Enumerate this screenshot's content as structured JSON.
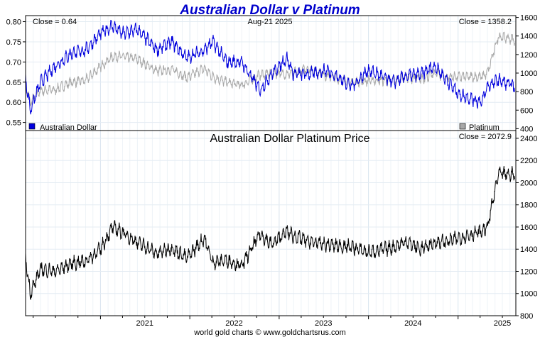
{
  "title": "Australian Dollar v Platinum",
  "footer": "world gold charts © www.goldchartsrus.com",
  "chart_data": [
    {
      "type": "line",
      "panel": "top",
      "date_label": "Aug-21  2025",
      "close_left": "Close = 0.64",
      "close_right": "Close = 1358.2",
      "left_axis": {
        "ticks": [
          "0.80",
          "0.75",
          "0.70",
          "0.65",
          "0.60",
          "0.55"
        ],
        "range": [
          0.53,
          0.815
        ]
      },
      "right_axis": {
        "ticks": [
          "1600",
          "1400",
          "1200",
          "1000",
          "800",
          "600",
          "400"
        ],
        "range": [
          380,
          1620
        ]
      },
      "series": [
        {
          "name": "Australian Dollar",
          "axis": "left",
          "color": "#0000dd",
          "x": [
            "2020-03-01",
            "2020-03-20",
            "2020-05-01",
            "2020-07-01",
            "2020-09-01",
            "2020-11-01",
            "2021-01-01",
            "2021-02-20",
            "2021-04-01",
            "2021-06-01",
            "2021-08-20",
            "2021-10-20",
            "2021-12-20",
            "2022-03-01",
            "2022-04-05",
            "2022-06-01",
            "2022-08-01",
            "2022-10-15",
            "2022-12-01",
            "2023-02-01",
            "2023-03-01",
            "2023-05-01",
            "2023-07-15",
            "2023-10-25",
            "2024-01-01",
            "2024-04-15",
            "2024-06-01",
            "2024-08-01",
            "2024-09-30",
            "2024-11-15",
            "2025-01-05",
            "2025-04-08",
            "2025-05-01",
            "2025-06-15",
            "2025-08-21"
          ],
          "y": [
            0.66,
            0.58,
            0.65,
            0.69,
            0.72,
            0.73,
            0.77,
            0.79,
            0.77,
            0.78,
            0.73,
            0.75,
            0.71,
            0.73,
            0.75,
            0.7,
            0.7,
            0.63,
            0.67,
            0.71,
            0.67,
            0.67,
            0.68,
            0.64,
            0.68,
            0.65,
            0.665,
            0.67,
            0.69,
            0.655,
            0.62,
            0.6,
            0.64,
            0.655,
            0.64
          ]
        },
        {
          "name": "Platinum",
          "axis": "right",
          "color": "#a8a8a8",
          "x": [
            "2020-03-01",
            "2020-03-20",
            "2020-05-01",
            "2020-07-01",
            "2020-09-01",
            "2020-11-01",
            "2021-01-01",
            "2021-02-20",
            "2021-04-01",
            "2021-06-01",
            "2021-08-20",
            "2021-10-20",
            "2021-12-20",
            "2022-03-01",
            "2022-04-05",
            "2022-06-01",
            "2022-08-01",
            "2022-10-15",
            "2022-12-01",
            "2023-02-01",
            "2023-03-01",
            "2023-05-01",
            "2023-07-15",
            "2023-10-25",
            "2024-01-01",
            "2024-04-15",
            "2024-06-01",
            "2024-08-01",
            "2024-09-30",
            "2024-11-15",
            "2025-01-05",
            "2025-04-08",
            "2025-05-01",
            "2025-06-15",
            "2025-08-21"
          ],
          "y": [
            880,
            680,
            810,
            820,
            900,
            920,
            1070,
            1180,
            1180,
            1150,
            1020,
            1040,
            950,
            1050,
            960,
            900,
            870,
            980,
            1000,
            990,
            1000,
            1050,
            970,
            900,
            920,
            920,
            960,
            930,
            1000,
            960,
            960,
            960,
            1000,
            1400,
            1358
          ]
        }
      ],
      "legend": [
        {
          "label": "Australian Dollar",
          "color": "#0000dd",
          "position": "bottom-left"
        },
        {
          "label": "Platinum",
          "color": "#a8a8a8",
          "position": "bottom-right"
        }
      ],
      "x_range": [
        "2020-03-01",
        "2025-08-25"
      ]
    },
    {
      "type": "line",
      "panel": "bottom",
      "title": "Australian Dollar Platinum Price",
      "close_right": "Close = 2072.9",
      "right_axis": {
        "ticks": [
          "2400",
          "2200",
          "2000",
          "1800",
          "1600",
          "1400",
          "1200",
          "1000",
          "800"
        ],
        "range": [
          800,
          2470
        ]
      },
      "series": [
        {
          "name": "",
          "color": "#000000",
          "x": [
            "2020-03-01",
            "2020-03-20",
            "2020-05-01",
            "2020-07-01",
            "2020-09-01",
            "2020-11-01",
            "2021-01-01",
            "2021-02-20",
            "2021-04-01",
            "2021-06-01",
            "2021-08-20",
            "2021-10-20",
            "2021-12-20",
            "2022-03-01",
            "2022-04-05",
            "2022-06-01",
            "2022-08-01",
            "2022-10-15",
            "2022-12-01",
            "2023-02-01",
            "2023-03-01",
            "2023-05-01",
            "2023-07-15",
            "2023-10-25",
            "2024-01-01",
            "2024-04-15",
            "2024-06-01",
            "2024-08-01",
            "2024-09-30",
            "2024-11-15",
            "2025-01-05",
            "2025-04-08",
            "2025-05-01",
            "2025-06-15",
            "2025-08-21"
          ],
          "y": [
            1320,
            1000,
            1220,
            1200,
            1270,
            1290,
            1400,
            1600,
            1550,
            1460,
            1360,
            1410,
            1320,
            1500,
            1280,
            1300,
            1250,
            1540,
            1440,
            1560,
            1520,
            1470,
            1440,
            1420,
            1370,
            1420,
            1470,
            1400,
            1460,
            1470,
            1500,
            1560,
            1600,
            2080,
            2073
          ]
        }
      ],
      "x_range": [
        "2020-03-01",
        "2025-08-25"
      ]
    }
  ],
  "x_axis": {
    "tick_labels": [
      "2021",
      "2022",
      "2023",
      "2024",
      "2025"
    ]
  }
}
